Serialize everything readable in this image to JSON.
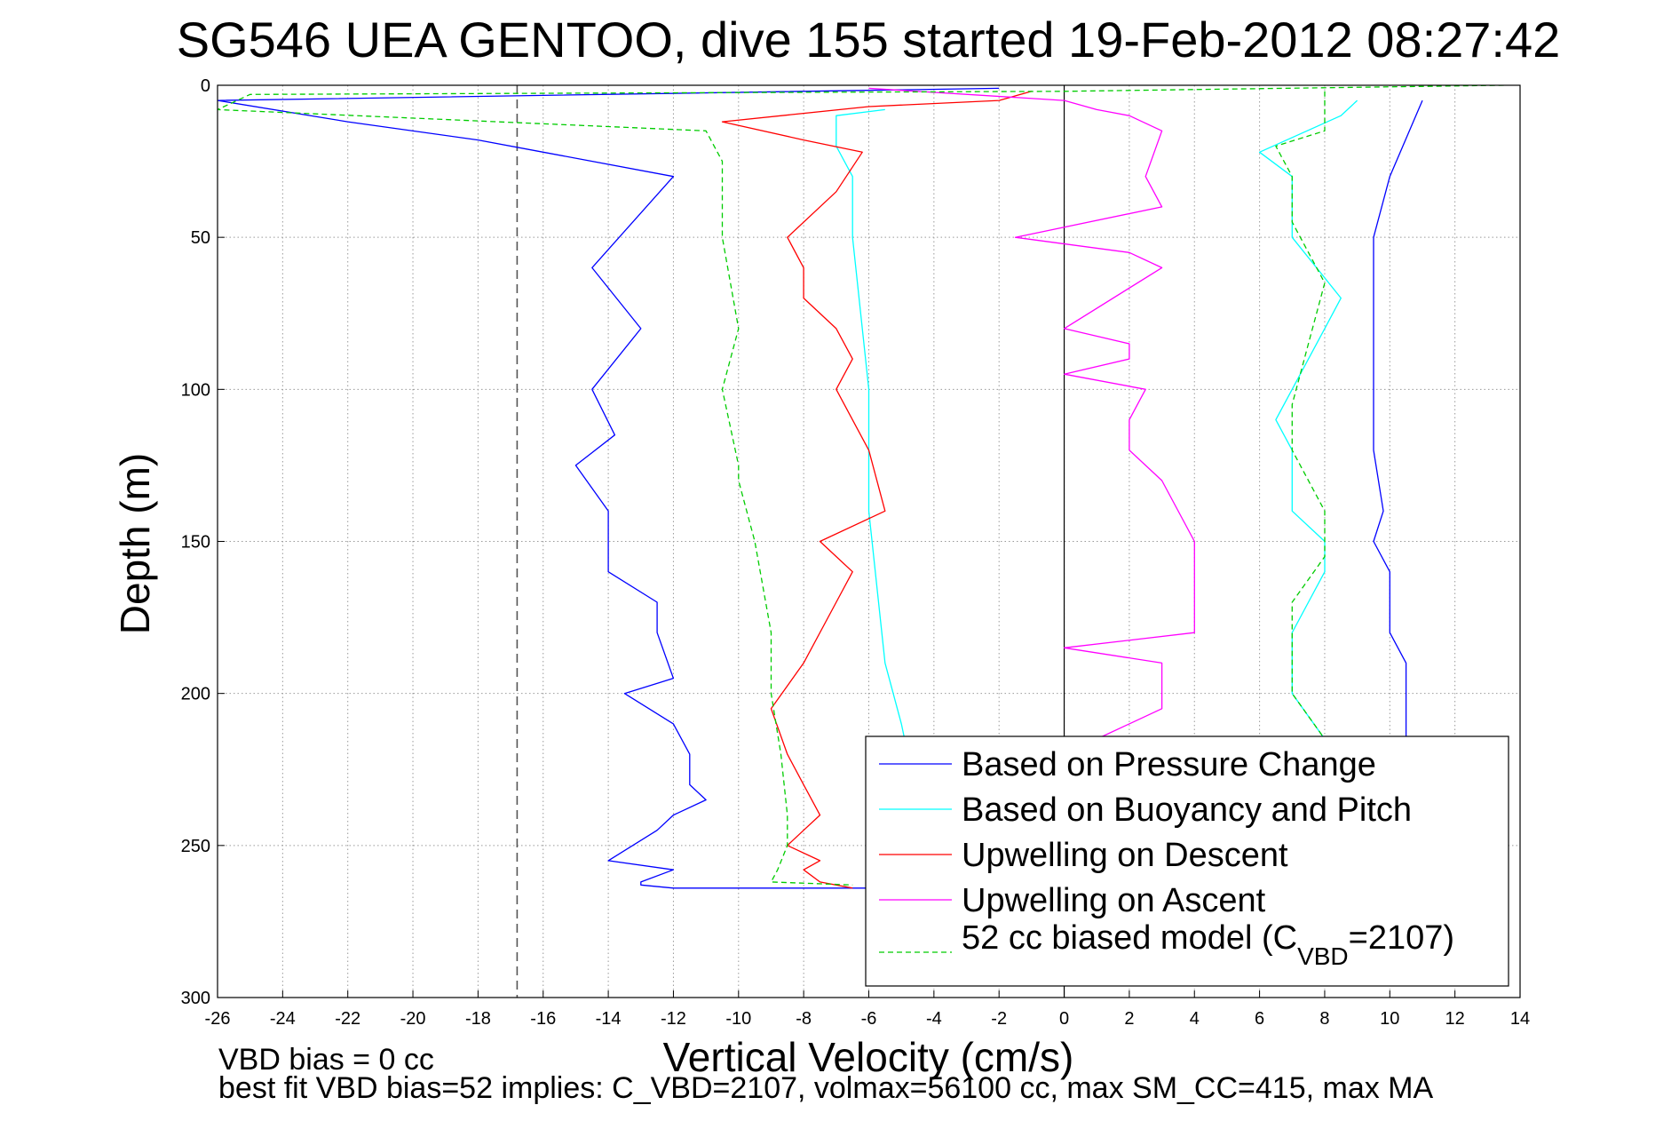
{
  "figure": {
    "title": "SG546 UEA GENTOO, dive 155 started 19-Feb-2012 08:27:42",
    "xlabel": "Vertical Velocity (cm/s)",
    "ylabel": "Depth (m)",
    "footnote_line1": "VBD bias = 0 cc",
    "footnote_line2": "best fit VBD bias=52 implies: C_VBD=2107, volmax=56100 cc, max SM_CC=415, max MA"
  },
  "legend": {
    "placement": "bottom-right",
    "items": [
      {
        "label": "Based on Pressure Change",
        "color": "#0000ff",
        "style": "solid"
      },
      {
        "label": "Based on Buoyancy and Pitch",
        "color": "#00ffff",
        "style": "solid"
      },
      {
        "label": "Upwelling on Descent",
        "color": "#ff0000",
        "style": "solid"
      },
      {
        "label": "Upwelling on Ascent",
        "color": "#ff00ff",
        "style": "solid"
      },
      {
        "label_pre": "52 cc biased model (C",
        "label_sub": "VBD",
        "label_post": "=2107)",
        "color": "#00cc00",
        "style": "dashed"
      }
    ]
  },
  "chart_data": {
    "type": "line",
    "xlim": [
      -26,
      14
    ],
    "ylim": [
      0,
      300
    ],
    "y_reversed": true,
    "grid": true,
    "xticks": [
      "-26",
      "-24",
      "-22",
      "-20",
      "-18",
      "-16",
      "-14",
      "-12",
      "-10",
      "-8",
      "-6",
      "-4",
      "-2",
      "0",
      "2",
      "4",
      "6",
      "8",
      "10",
      "12",
      "14"
    ],
    "yticks": [
      "0",
      "50",
      "100",
      "150",
      "200",
      "250",
      "300"
    ],
    "vline_dashed_x": -16.8,
    "vline_solid_x": 0,
    "series": [
      {
        "name": "Based on Pressure Change",
        "color": "#0000ff",
        "dash": false,
        "x": [
          -2.0,
          -26.0,
          -22.0,
          -18.0,
          -16.0,
          -12.0,
          -14.5,
          -13.0,
          -14.5,
          -13.8,
          -15.0,
          -14.0,
          -14.0,
          -12.5,
          -12.5,
          -12.0,
          -13.5,
          -12.0,
          -11.5,
          -11.5,
          -11.0,
          -12.0,
          -12.5,
          -14.0,
          -12.0,
          -13.0,
          -13.0,
          -12.0,
          -6.0,
          null,
          11.0,
          10.0,
          9.5,
          9.5,
          9.5,
          9.5,
          9.8,
          9.5,
          10.0,
          10.0,
          10.5,
          10.5,
          10.5,
          10.5
        ],
        "y": [
          1,
          5,
          12,
          18,
          22,
          30,
          60,
          80,
          100,
          115,
          125,
          140,
          160,
          170,
          180,
          195,
          200,
          210,
          220,
          230,
          235,
          240,
          245,
          255,
          258,
          262,
          263,
          264,
          264,
          null,
          5,
          30,
          50,
          70,
          100,
          120,
          140,
          150,
          160,
          180,
          190,
          200,
          210,
          215
        ]
      },
      {
        "name": "Based on Buoyancy and Pitch",
        "color": "#00ffff",
        "dash": false,
        "x": [
          -5.5,
          -7.0,
          -7.0,
          -6.5,
          -6.5,
          -6.0,
          -6.0,
          -5.5,
          -5.0,
          -4.9,
          null,
          9.0,
          8.5,
          6.0,
          7.0,
          7.0,
          8.5,
          8.0,
          7.0,
          6.5,
          7.0,
          7.0,
          8.0,
          8.0,
          7.5,
          7.0,
          7.0,
          8.0
        ],
        "y": [
          8,
          10,
          20,
          30,
          50,
          100,
          140,
          190,
          210,
          215,
          null,
          5,
          10,
          22,
          30,
          50,
          70,
          80,
          100,
          110,
          120,
          140,
          150,
          160,
          170,
          180,
          200,
          215
        ]
      },
      {
        "name": "Upwelling on Descent",
        "color": "#ff0000",
        "dash": false,
        "x": [
          -1.0,
          -2.0,
          -6.0,
          -10.5,
          -8.0,
          -6.2,
          -7.0,
          -8.5,
          -8.0,
          -8.0,
          -7.0,
          -6.5,
          -7.0,
          -6.0,
          -5.5,
          -7.5,
          -6.5,
          -7.0,
          -8.0,
          -9.0,
          -8.5,
          -8.0,
          -7.5,
          -8.0,
          -8.5,
          -7.5,
          -8.0,
          -7.5,
          -6.5
        ],
        "y": [
          2,
          5,
          7,
          12,
          18,
          22,
          35,
          50,
          60,
          70,
          80,
          90,
          100,
          120,
          140,
          150,
          160,
          170,
          190,
          205,
          220,
          230,
          240,
          245,
          250,
          255,
          258,
          262,
          264
        ]
      },
      {
        "name": "Upwelling on Ascent",
        "color": "#ff00ff",
        "dash": false,
        "x": [
          -6.0,
          0.0,
          1.0,
          2.0,
          3.0,
          2.5,
          3.0,
          -1.5,
          2.0,
          3.0,
          0.0,
          2.0,
          2.0,
          0.0,
          2.5,
          2.0,
          2.0,
          3.0,
          4.0,
          4.0,
          4.0,
          4.0,
          0.0,
          3.0,
          3.0,
          1.0
        ],
        "y": [
          1,
          5,
          8,
          10,
          15,
          30,
          40,
          50,
          55,
          60,
          80,
          85,
          90,
          95,
          100,
          110,
          120,
          130,
          150,
          160,
          170,
          180,
          185,
          190,
          205,
          215
        ]
      },
      {
        "name": "52 cc biased model (CVBD=2107)",
        "color": "#00cc00",
        "dash": true,
        "x": [
          13.5,
          0.0,
          -25.0,
          -26.0,
          -11.0,
          -10.5,
          -10.5,
          -10.0,
          -10.5,
          -10.0,
          -10.0,
          -9.5,
          -9.0,
          -9.0,
          -8.7,
          -8.5,
          -8.5,
          -8.8,
          -9.0,
          -6.5,
          null,
          8.0,
          8.0,
          6.5,
          7.0,
          7.0,
          8.0,
          7.5,
          7.0,
          7.0,
          8.0,
          8.0,
          7.0,
          7.0,
          8.0
        ],
        "y": [
          0,
          2,
          3,
          8,
          15,
          25,
          50,
          80,
          100,
          125,
          130,
          150,
          180,
          200,
          220,
          240,
          250,
          258,
          262,
          263,
          null,
          2,
          15,
          20,
          30,
          45,
          65,
          85,
          105,
          120,
          140,
          155,
          170,
          200,
          215
        ]
      }
    ]
  }
}
